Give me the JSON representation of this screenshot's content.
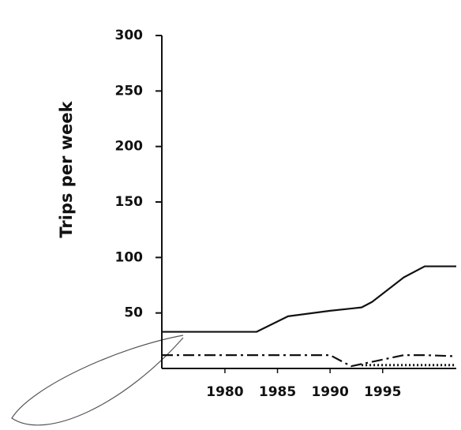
{
  "chart_data": {
    "type": "line",
    "y_label": "Trips per week",
    "x": [
      1974,
      1983,
      1986,
      1990,
      1992,
      1993,
      1994,
      1997,
      1999,
      2002
    ],
    "series": [
      {
        "color": "#111111",
        "dash": "solid",
        "values": [
          33,
          33,
          47,
          52,
          54,
          55,
          60,
          82,
          92,
          92
        ]
      },
      {
        "color": "#111111",
        "dash": "dashdot",
        "values": [
          12,
          12,
          12,
          12,
          2,
          4,
          6,
          12,
          12,
          11
        ]
      },
      {
        "color": "#111111",
        "dash": "dotted",
        "values": [
          null,
          null,
          null,
          null,
          null,
          3,
          3,
          3,
          3,
          3
        ]
      }
    ],
    "xlim": [
      1974,
      2002
    ],
    "xticks": [
      1980,
      1985,
      1990,
      1995
    ],
    "ylim": [
      0,
      300
    ],
    "yticks": [
      50,
      100,
      150,
      200,
      250,
      300
    ],
    "grid": false
  }
}
